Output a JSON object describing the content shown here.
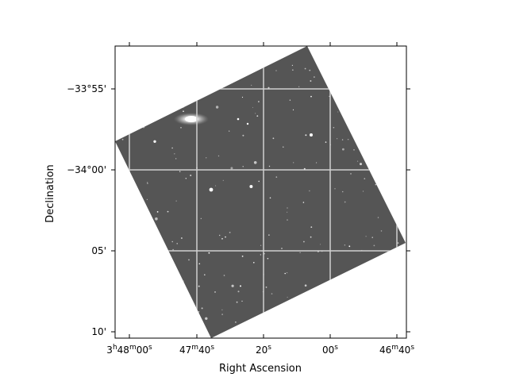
{
  "figure": {
    "xlabel": "Right Ascension",
    "ylabel": "Declination",
    "x_ticks": [
      {
        "text": "3h48m00s",
        "parts": [
          "3",
          "h",
          "48",
          "m",
          "00",
          "s"
        ]
      },
      {
        "text": "47m40s",
        "parts": [
          "",
          "",
          "47",
          "m",
          "40",
          "s"
        ]
      },
      {
        "text": "20s",
        "parts": [
          "",
          "",
          "",
          "",
          "20",
          "s"
        ]
      },
      {
        "text": "00s",
        "parts": [
          "",
          "",
          "",
          "",
          "00",
          "s"
        ]
      },
      {
        "text": "46m40s",
        "parts": [
          "",
          "",
          "46",
          "m",
          "40",
          "s"
        ]
      }
    ],
    "y_ticks": [
      "−33°55'",
      "−34°00'",
      "05'",
      "10'"
    ],
    "colors": {
      "background": "#ffffff",
      "image_fill": "#555555",
      "grid": "#d0d0d0",
      "stars": "#ffffff",
      "axes": "#000000"
    },
    "grid": true,
    "image_type": "rotated astronomical image (grayscale)"
  }
}
